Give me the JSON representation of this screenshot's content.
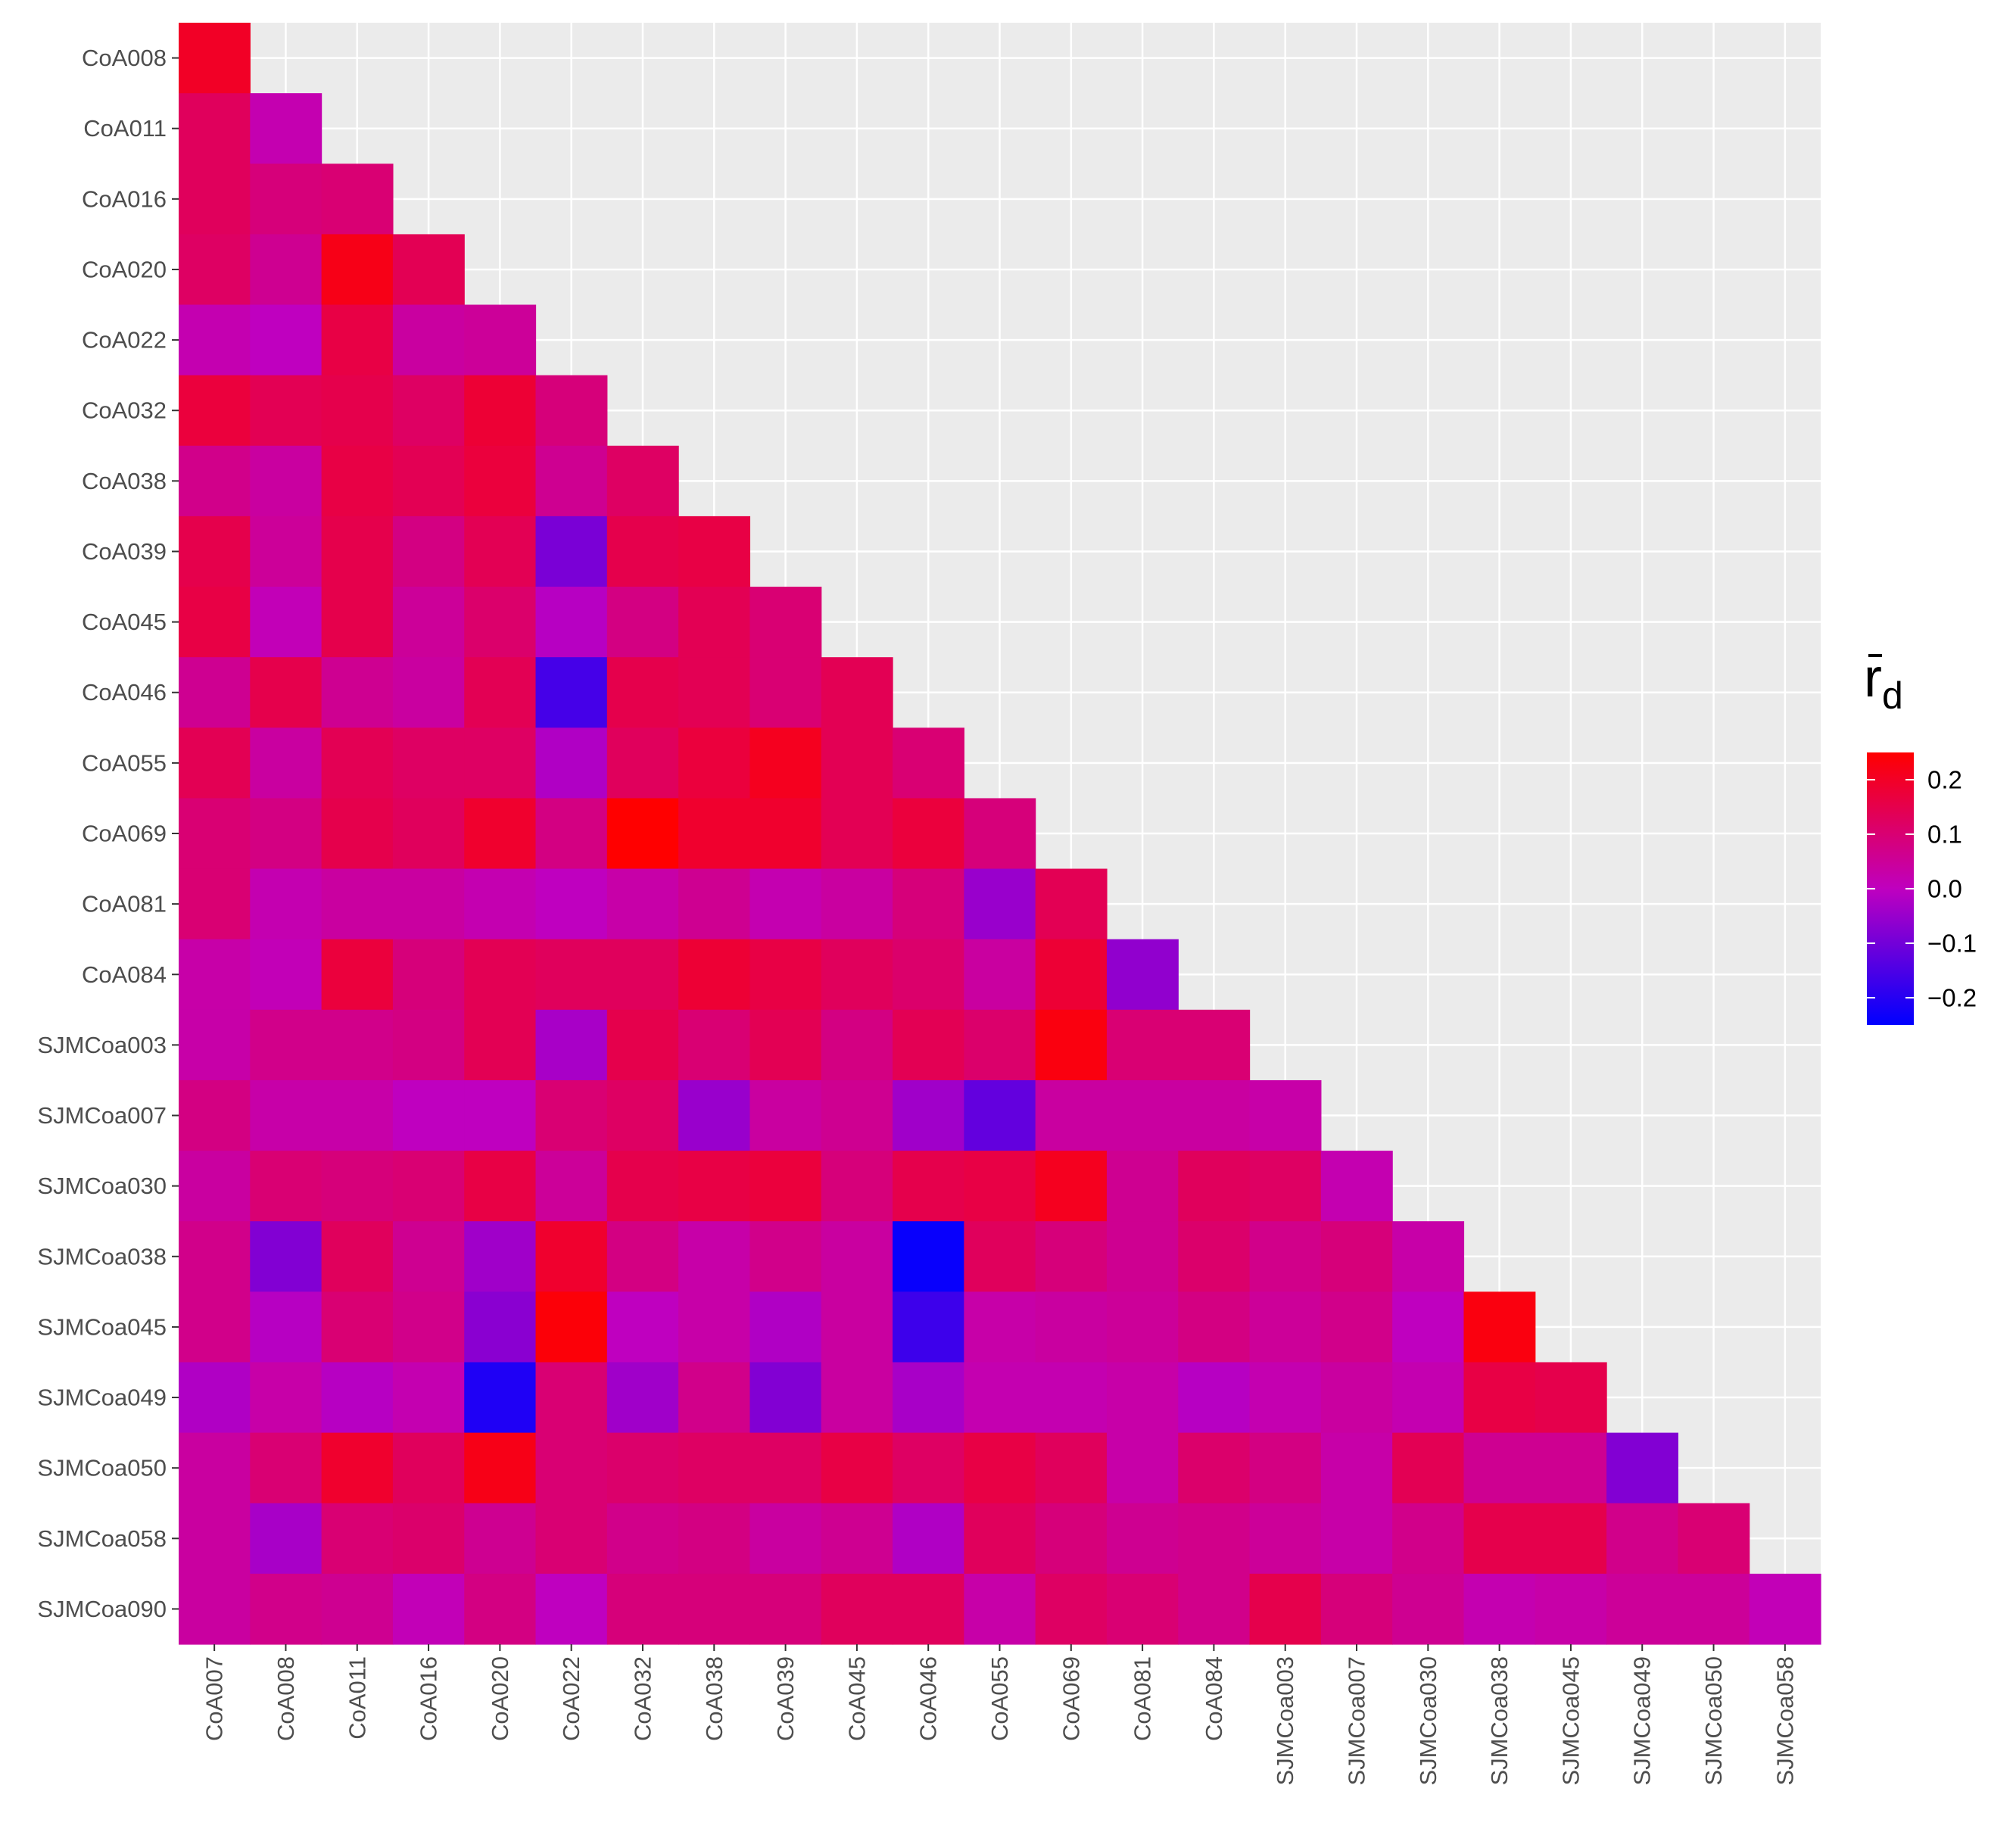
{
  "chart_data": {
    "type": "heatmap",
    "layout": "lower-triangle",
    "x_categories": [
      "CoA007",
      "CoA008",
      "CoA011",
      "CoA016",
      "CoA020",
      "CoA022",
      "CoA032",
      "CoA038",
      "CoA039",
      "CoA045",
      "CoA046",
      "CoA055",
      "CoA069",
      "CoA081",
      "CoA084",
      "SJMCoa003",
      "SJMCoa007",
      "SJMCoa030",
      "SJMCoa038",
      "SJMCoa045",
      "SJMCoa049",
      "SJMCoa050",
      "SJMCoa058"
    ],
    "y_categories": [
      "CoA008",
      "CoA011",
      "CoA016",
      "CoA020",
      "CoA022",
      "CoA032",
      "CoA038",
      "CoA039",
      "CoA045",
      "CoA046",
      "CoA055",
      "CoA069",
      "CoA081",
      "CoA084",
      "SJMCoa003",
      "SJMCoa007",
      "SJMCoa030",
      "SJMCoa038",
      "SJMCoa045",
      "SJMCoa049",
      "SJMCoa050",
      "SJMCoa058",
      "SJMCoa090"
    ],
    "values": [
      [
        0.2
      ],
      [
        0.13,
        0.02
      ],
      [
        0.13,
        0.09,
        0.1
      ],
      [
        0.12,
        0.06,
        0.22,
        0.14
      ],
      [
        0.02,
        0.0,
        0.16,
        0.04,
        0.05
      ],
      [
        0.17,
        0.14,
        0.15,
        0.12,
        0.18,
        0.09
      ],
      [
        0.07,
        0.04,
        0.16,
        0.14,
        0.17,
        0.06,
        0.12
      ],
      [
        0.15,
        0.05,
        0.15,
        0.08,
        0.14,
        -0.09,
        0.15,
        0.16
      ],
      [
        0.16,
        0.01,
        0.15,
        0.05,
        0.11,
        -0.01,
        0.08,
        0.14,
        0.1
      ],
      [
        0.06,
        0.15,
        0.06,
        0.04,
        0.14,
        -0.16,
        0.15,
        0.14,
        0.1,
        0.14
      ],
      [
        0.14,
        0.04,
        0.14,
        0.12,
        0.12,
        -0.02,
        0.13,
        0.17,
        0.21,
        0.14,
        0.1
      ],
      [
        0.1,
        0.08,
        0.15,
        0.13,
        0.19,
        0.08,
        0.25,
        0.19,
        0.19,
        0.14,
        0.17,
        0.09
      ],
      [
        0.1,
        0.02,
        0.04,
        0.04,
        0.02,
        0.0,
        0.03,
        0.06,
        0.02,
        0.04,
        0.09,
        -0.05,
        0.14
      ],
      [
        0.03,
        0.01,
        0.17,
        0.09,
        0.14,
        0.13,
        0.13,
        0.18,
        0.16,
        0.13,
        0.11,
        0.04,
        0.18,
        -0.06
      ],
      [
        0.03,
        0.07,
        0.07,
        0.08,
        0.14,
        -0.03,
        0.15,
        0.1,
        0.14,
        0.08,
        0.14,
        0.11,
        0.23,
        0.1,
        0.1
      ],
      [
        0.08,
        0.03,
        0.03,
        0.0,
        0.0,
        0.1,
        0.12,
        -0.05,
        0.04,
        0.06,
        -0.04,
        -0.12,
        0.04,
        0.04,
        0.04,
        0.03
      ],
      [
        0.04,
        0.1,
        0.09,
        0.1,
        0.16,
        0.05,
        0.15,
        0.16,
        0.17,
        0.09,
        0.15,
        0.16,
        0.21,
        0.06,
        0.13,
        0.12,
        0.02
      ],
      [
        0.07,
        -0.08,
        0.13,
        0.06,
        -0.04,
        0.19,
        0.08,
        0.03,
        0.07,
        0.04,
        -0.24,
        0.13,
        0.09,
        0.06,
        0.11,
        0.07,
        0.09,
        0.03
      ],
      [
        0.07,
        -0.01,
        0.1,
        0.07,
        -0.07,
        0.24,
        0.0,
        0.03,
        -0.02,
        0.04,
        -0.17,
        0.03,
        0.04,
        0.05,
        0.08,
        0.05,
        0.07,
        0.0,
        0.23
      ],
      [
        -0.02,
        0.03,
        -0.01,
        0.02,
        -0.21,
        0.1,
        -0.04,
        0.07,
        -0.08,
        0.04,
        -0.03,
        0.02,
        0.02,
        0.03,
        -0.01,
        0.02,
        0.04,
        0.02,
        0.16,
        0.15
      ],
      [
        0.04,
        0.1,
        0.19,
        0.13,
        0.22,
        0.1,
        0.11,
        0.12,
        0.12,
        0.16,
        0.12,
        0.16,
        0.13,
        0.03,
        0.11,
        0.08,
        0.03,
        0.14,
        0.06,
        0.06,
        -0.08
      ],
      [
        0.04,
        -0.03,
        0.1,
        0.11,
        0.06,
        0.1,
        0.07,
        0.08,
        0.04,
        0.06,
        -0.02,
        0.13,
        0.09,
        0.06,
        0.07,
        0.05,
        0.03,
        0.07,
        0.15,
        0.15,
        0.07,
        0.1
      ],
      [
        0.04,
        0.07,
        0.06,
        0.01,
        0.08,
        0.0,
        0.09,
        0.09,
        0.09,
        0.13,
        0.13,
        0.03,
        0.12,
        0.1,
        0.07,
        0.15,
        0.09,
        0.06,
        0.02,
        0.03,
        0.05,
        0.05,
        0.01
      ]
    ],
    "color_scale": {
      "low": "#0000ff",
      "mid": "#bf00bf",
      "high": "#ff0000",
      "min": -0.25,
      "max": 0.25
    },
    "legend": {
      "title": "r",
      "title_subscript": "d",
      "title_overbar": true,
      "ticks": [
        0.2,
        0.1,
        0.0,
        -0.1,
        -0.2
      ],
      "tick_labels": [
        "0.2",
        "0.1",
        "0.0",
        "−0.1",
        "−0.2"
      ],
      "placement": "right"
    },
    "x_tick_rotation": -90,
    "grid": true,
    "panel_background": "#ebebeb",
    "grid_color": "#ffffff"
  }
}
